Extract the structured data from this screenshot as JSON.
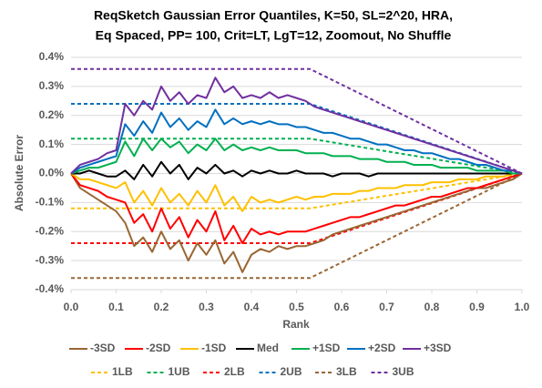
{
  "chart_data": {
    "type": "line",
    "title": [
      "ReqSketch Gaussian Error Quantiles, K=50, SL=2^20,  HRA,",
      "Eq Spaced, PP= 100, Crit=LT, LgT=12, Zoomout, No Shuffle"
    ],
    "xlabel": "Rank",
    "ylabel": "Absolute Error",
    "xlim": [
      0,
      1
    ],
    "ylim": [
      -0.4,
      0.4
    ],
    "xticks": [
      {
        "value": 0,
        "label": "0.0"
      },
      0.1,
      0.2,
      0.3,
      0.4,
      0.5,
      0.6,
      0.7,
      0.8,
      0.9,
      {
        "value": 1,
        "label": "1.0"
      }
    ],
    "yticks": [
      {
        "value": -0.4,
        "label": "-0.4%"
      },
      {
        "value": -0.3,
        "label": "-0.3%"
      },
      {
        "value": -0.2,
        "label": "-0.2%"
      },
      {
        "value": -0.1,
        "label": "-0.1%"
      },
      {
        "value": 0,
        "label": "0.0%"
      },
      {
        "value": 0.1,
        "label": "0.1%"
      },
      {
        "value": 0.2,
        "label": "0.2%"
      },
      {
        "value": 0.3,
        "label": "0.3%"
      },
      {
        "value": 0.4,
        "label": "0.4%"
      }
    ],
    "grid": true,
    "legend": "bottom",
    "x": [
      0,
      0.02,
      0.04,
      0.06,
      0.08,
      0.1,
      0.12,
      0.14,
      0.16,
      0.18,
      0.2,
      0.22,
      0.24,
      0.26,
      0.28,
      0.3,
      0.32,
      0.34,
      0.36,
      0.38,
      0.4,
      0.42,
      0.44,
      0.46,
      0.48,
      0.5,
      0.52,
      0.54,
      0.56,
      0.58,
      0.6,
      0.62,
      0.64,
      0.66,
      0.68,
      0.7,
      0.72,
      0.74,
      0.76,
      0.78,
      0.8,
      0.82,
      0.84,
      0.86,
      0.88,
      0.9,
      0.92,
      0.94,
      0.96,
      0.98,
      1
    ],
    "series": [
      {
        "name": "-3SD",
        "color": "#996633",
        "values": [
          0,
          -0.05,
          -0.07,
          -0.09,
          -0.11,
          -0.13,
          -0.17,
          -0.25,
          -0.22,
          -0.27,
          -0.2,
          -0.26,
          -0.23,
          -0.3,
          -0.24,
          -0.28,
          -0.23,
          -0.31,
          -0.27,
          -0.34,
          -0.28,
          -0.26,
          -0.27,
          -0.25,
          -0.26,
          -0.25,
          -0.25,
          -0.24,
          -0.23,
          -0.21,
          -0.2,
          -0.19,
          -0.18,
          -0.17,
          -0.16,
          -0.15,
          -0.14,
          -0.13,
          -0.12,
          -0.11,
          -0.1,
          -0.09,
          -0.08,
          -0.07,
          -0.06,
          -0.05,
          -0.05,
          -0.04,
          -0.03,
          -0.02,
          0
        ]
      },
      {
        "name": "-2SD",
        "color": "#ff0000",
        "values": [
          0,
          -0.04,
          -0.05,
          -0.06,
          -0.08,
          -0.09,
          -0.1,
          -0.17,
          -0.14,
          -0.2,
          -0.12,
          -0.19,
          -0.15,
          -0.22,
          -0.16,
          -0.2,
          -0.13,
          -0.23,
          -0.18,
          -0.24,
          -0.19,
          -0.21,
          -0.2,
          -0.21,
          -0.2,
          -0.2,
          -0.2,
          -0.19,
          -0.18,
          -0.17,
          -0.16,
          -0.15,
          -0.15,
          -0.14,
          -0.13,
          -0.12,
          -0.11,
          -0.11,
          -0.1,
          -0.09,
          -0.08,
          -0.08,
          -0.07,
          -0.06,
          -0.05,
          -0.05,
          -0.04,
          -0.03,
          -0.02,
          -0.01,
          0
        ]
      },
      {
        "name": "-1SD",
        "color": "#ffc000",
        "values": [
          0,
          -0.02,
          -0.02,
          -0.03,
          -0.04,
          -0.05,
          -0.03,
          -0.1,
          -0.06,
          -0.11,
          -0.05,
          -0.1,
          -0.07,
          -0.11,
          -0.06,
          -0.1,
          -0.04,
          -0.11,
          -0.08,
          -0.13,
          -0.08,
          -0.1,
          -0.09,
          -0.1,
          -0.09,
          -0.08,
          -0.09,
          -0.08,
          -0.08,
          -0.07,
          -0.07,
          -0.07,
          -0.06,
          -0.06,
          -0.05,
          -0.05,
          -0.05,
          -0.04,
          -0.04,
          -0.04,
          -0.03,
          -0.03,
          -0.03,
          -0.02,
          -0.02,
          -0.02,
          -0.01,
          -0.01,
          -0.01,
          0,
          0
        ]
      },
      {
        "name": "Med",
        "color": "#000000",
        "values": [
          0,
          0,
          0.01,
          0,
          -0.01,
          -0.01,
          0.01,
          -0.02,
          0.03,
          -0.01,
          0.04,
          0,
          0.03,
          -0.02,
          0.02,
          0,
          0.03,
          0,
          0.01,
          -0.01,
          0.01,
          0,
          0.01,
          0,
          0,
          0.01,
          0,
          0,
          0,
          -0.01,
          0,
          0,
          0,
          -0.01,
          0,
          0,
          0,
          0,
          0,
          0,
          0,
          0,
          0,
          0,
          0,
          0,
          0,
          0,
          0,
          0,
          0
        ]
      },
      {
        "name": "+1SD",
        "color": "#00b050",
        "values": [
          0,
          0.01,
          0.02,
          0.02,
          0.03,
          0.04,
          0.11,
          0.06,
          0.12,
          0.08,
          0.12,
          0.09,
          0.11,
          0.07,
          0.1,
          0.08,
          0.12,
          0.08,
          0.1,
          0.08,
          0.09,
          0.08,
          0.09,
          0.08,
          0.08,
          0.08,
          0.07,
          0.07,
          0.07,
          0.06,
          0.06,
          0.06,
          0.05,
          0.05,
          0.05,
          0.04,
          0.04,
          0.04,
          0.03,
          0.03,
          0.03,
          0.02,
          0.02,
          0.02,
          0.02,
          0.01,
          0.01,
          0.01,
          0.01,
          0,
          0
        ]
      },
      {
        "name": "+2SD",
        "color": "#0070c0",
        "values": [
          0,
          0.02,
          0.03,
          0.04,
          0.05,
          0.06,
          0.17,
          0.13,
          0.18,
          0.14,
          0.21,
          0.16,
          0.19,
          0.15,
          0.18,
          0.16,
          0.22,
          0.17,
          0.19,
          0.17,
          0.18,
          0.17,
          0.18,
          0.17,
          0.17,
          0.16,
          0.16,
          0.15,
          0.14,
          0.14,
          0.13,
          0.12,
          0.12,
          0.11,
          0.1,
          0.1,
          0.09,
          0.08,
          0.08,
          0.07,
          0.07,
          0.06,
          0.05,
          0.05,
          0.04,
          0.03,
          0.03,
          0.02,
          0.01,
          0.01,
          0
        ]
      },
      {
        "name": "+3SD",
        "color": "#7030a0",
        "values": [
          0,
          0.03,
          0.04,
          0.05,
          0.07,
          0.08,
          0.24,
          0.2,
          0.25,
          0.22,
          0.3,
          0.25,
          0.28,
          0.24,
          0.27,
          0.26,
          0.33,
          0.28,
          0.3,
          0.26,
          0.27,
          0.26,
          0.28,
          0.26,
          0.27,
          0.26,
          0.25,
          0.23,
          0.22,
          0.21,
          0.2,
          0.19,
          0.18,
          0.17,
          0.16,
          0.15,
          0.14,
          0.13,
          0.12,
          0.11,
          0.1,
          0.09,
          0.08,
          0.07,
          0.06,
          0.05,
          0.04,
          0.03,
          0.02,
          0.01,
          0
        ]
      },
      {
        "name": "1LB",
        "color": "#ffc000",
        "dashed": true,
        "x": [
          0,
          0.53,
          1
        ],
        "values": [
          -0.12,
          -0.12,
          0
        ]
      },
      {
        "name": "1UB",
        "color": "#00b050",
        "dashed": true,
        "x": [
          0,
          0.53,
          1
        ],
        "values": [
          0.12,
          0.12,
          0
        ]
      },
      {
        "name": "2LB",
        "color": "#ff0000",
        "dashed": true,
        "x": [
          0,
          0.53,
          1
        ],
        "values": [
          -0.24,
          -0.24,
          0
        ]
      },
      {
        "name": "2UB",
        "color": "#0070c0",
        "dashed": true,
        "x": [
          0,
          0.53,
          1
        ],
        "values": [
          0.24,
          0.24,
          0
        ]
      },
      {
        "name": "3LB",
        "color": "#996633",
        "dashed": true,
        "x": [
          0,
          0.53,
          1
        ],
        "values": [
          -0.36,
          -0.36,
          0
        ]
      },
      {
        "name": "3UB",
        "color": "#7030a0",
        "dashed": true,
        "x": [
          0,
          0.53,
          1
        ],
        "values": [
          0.36,
          0.36,
          0
        ]
      }
    ]
  }
}
